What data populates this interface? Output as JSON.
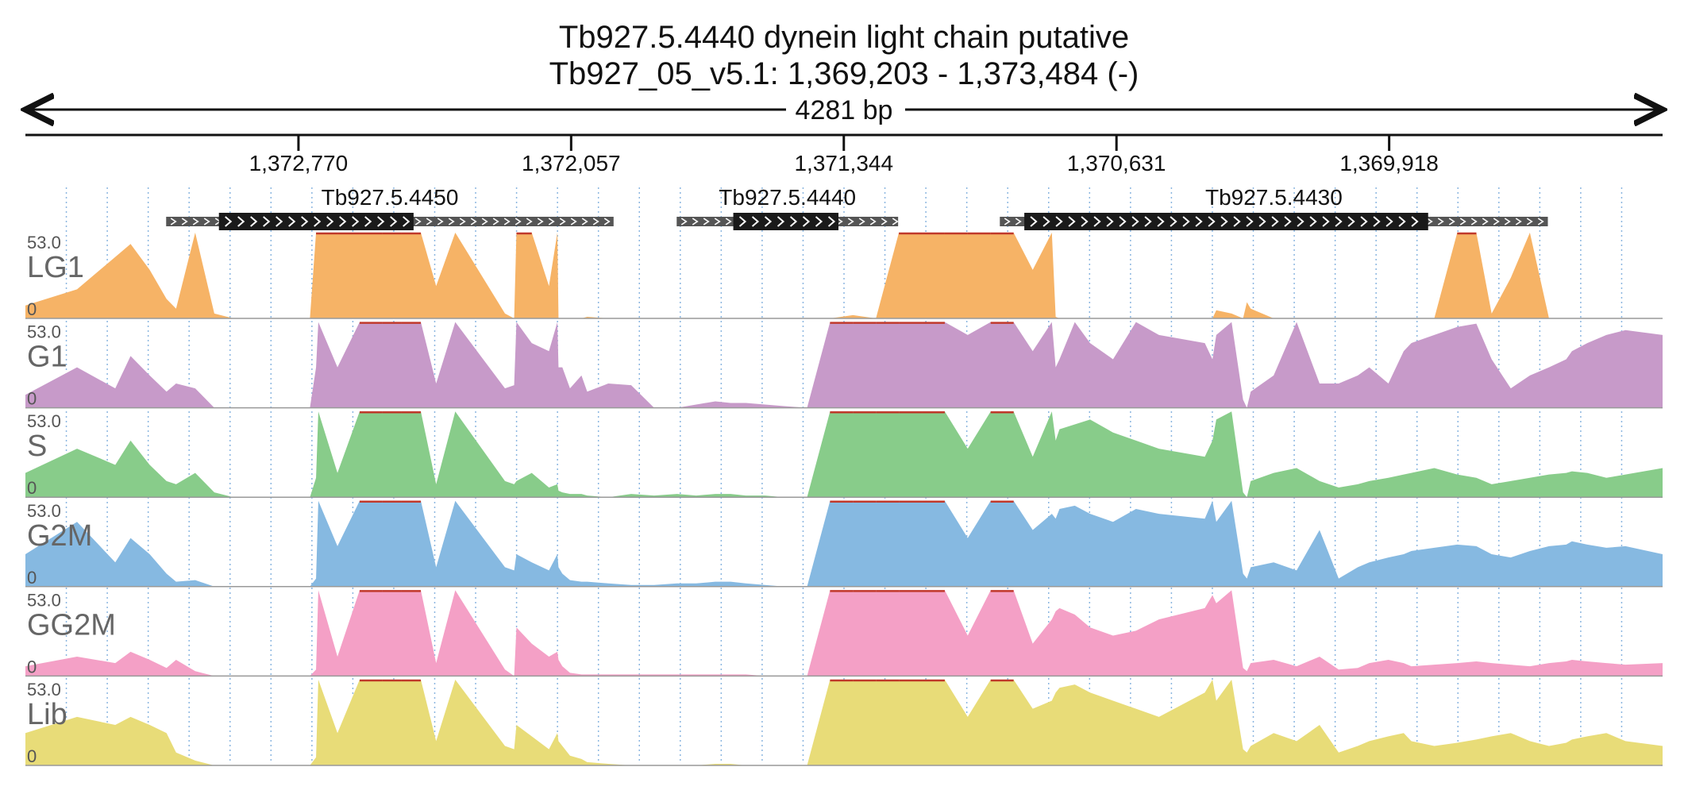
{
  "title": "Tb927.5.4440  dynein light chain  putative",
  "subtitle": "Tb927_05_v5.1: 1,369,203 - 1,373,484 (-)",
  "span_label": "4281 bp",
  "chart_data": {
    "type": "area",
    "coordinate_range": [
      1373484,
      1369203
    ],
    "ticks": [
      1372770,
      1372057,
      1371344,
      1370631,
      1369918
    ],
    "tick_labels": [
      "1,372,770",
      "1,372,057",
      "1,371,344",
      "1,370,631",
      "1,369,918"
    ],
    "grid": true,
    "ylim": [
      0,
      53.0
    ],
    "y_max_label": "53.0",
    "y_min_label": "0",
    "genes": [
      {
        "name": "Tb927.5.4450",
        "start": 1373116,
        "end": 1371946,
        "cds_start": 1372978,
        "cds_end": 1372469
      },
      {
        "name": "Tb927.5.4440",
        "start": 1371781,
        "end": 1371202,
        "cds_start": 1371633,
        "cds_end": 1371358
      },
      {
        "name": "Tb927.5.4430",
        "start": 1370936,
        "end": 1369503,
        "cds_start": 1370872,
        "cds_end": 1369816
      }
    ],
    "series_x": [
      1373484,
      1373349,
      1373249,
      1373209,
      1373159,
      1373115,
      1373090,
      1373040,
      1372990,
      1372940,
      1372890,
      1372790,
      1372740,
      1372724,
      1372718,
      1372668,
      1372610,
      1372550,
      1372500,
      1372450,
      1372410,
      1372360,
      1372230,
      1372206,
      1372200,
      1372160,
      1372115,
      1372093,
      1372090,
      1372080,
      1372060,
      1372030,
      1372015,
      1371960,
      1371900,
      1371840,
      1371780,
      1371730,
      1371680,
      1371640,
      1371600,
      1371550,
      1371500,
      1371440,
      1371380,
      1371320,
      1371260,
      1371200,
      1371140,
      1371080,
      1371020,
      1370960,
      1370900,
      1370850,
      1370800,
      1370790,
      1370780,
      1370740,
      1370700,
      1370640,
      1370580,
      1370520,
      1370400,
      1370380,
      1370370,
      1370330,
      1370300,
      1370290,
      1370280,
      1370220,
      1370160,
      1370100,
      1370050,
      1370000,
      1369970,
      1369920,
      1369880,
      1369860,
      1369800,
      1369740,
      1369690,
      1369650,
      1369600,
      1369550,
      1369500,
      1369455,
      1369440,
      1369400,
      1369350,
      1369300,
      1369203
    ],
    "series": [
      {
        "name": "LG1",
        "color": "#f6b366",
        "values": [
          8,
          18,
          38,
          46,
          30,
          12,
          6,
          53,
          3,
          0,
          0,
          0,
          0,
          53,
          53,
          53,
          53,
          53,
          53,
          53,
          20,
          53,
          3,
          0,
          53,
          53,
          20,
          53,
          0,
          0,
          0,
          0,
          1,
          0,
          0,
          0,
          0,
          0,
          0,
          0,
          0,
          0,
          0,
          0,
          0,
          2,
          0,
          53,
          53,
          53,
          53,
          53,
          53,
          30,
          53,
          1,
          0,
          0,
          0,
          0,
          0,
          0,
          0,
          0,
          5,
          3,
          0,
          10,
          6,
          0,
          0,
          0,
          0,
          0,
          0,
          0,
          0,
          0,
          0,
          53,
          53,
          3,
          25,
          53,
          0,
          0,
          0,
          0,
          0,
          0,
          0
        ]
      },
      {
        "name": "G1",
        "color": "#c79ac9",
        "values": [
          8,
          25,
          12,
          32,
          20,
          10,
          15,
          12,
          0,
          0,
          0,
          0,
          0,
          25,
          53,
          25,
          53,
          53,
          53,
          53,
          15,
          53,
          12,
          14,
          53,
          40,
          35,
          53,
          25,
          25,
          12,
          20,
          10,
          15,
          14,
          0,
          0,
          2,
          4,
          3,
          3,
          2,
          1,
          0,
          53,
          53,
          53,
          53,
          53,
          53,
          45,
          53,
          53,
          35,
          53,
          25,
          30,
          53,
          40,
          30,
          53,
          45,
          40,
          30,
          45,
          53,
          5,
          0,
          10,
          20,
          53,
          15,
          15,
          20,
          25,
          15,
          35,
          40,
          45,
          50,
          52,
          30,
          12,
          20,
          25,
          30,
          35,
          40,
          45,
          48,
          45
        ]
      },
      {
        "name": "S",
        "color": "#88cc8a",
        "values": [
          15,
          30,
          20,
          35,
          20,
          10,
          8,
          15,
          3,
          0,
          0,
          0,
          0,
          12,
          53,
          15,
          53,
          53,
          53,
          53,
          8,
          53,
          10,
          8,
          10,
          15,
          6,
          8,
          4,
          3,
          2,
          2,
          1,
          0,
          2,
          1,
          2,
          1,
          2,
          2,
          1,
          1,
          0,
          0,
          53,
          53,
          53,
          53,
          53,
          53,
          30,
          53,
          53,
          25,
          53,
          35,
          42,
          45,
          48,
          40,
          35,
          30,
          25,
          35,
          48,
          53,
          3,
          0,
          10,
          15,
          18,
          10,
          6,
          8,
          10,
          12,
          14,
          15,
          18,
          14,
          12,
          8,
          10,
          12,
          14,
          15,
          16,
          15,
          12,
          14,
          18
        ]
      },
      {
        "name": "G2M",
        "color": "#86b9e1",
        "values": [
          20,
          40,
          15,
          30,
          20,
          8,
          3,
          4,
          0,
          0,
          0,
          0,
          0,
          5,
          53,
          25,
          53,
          53,
          53,
          53,
          12,
          53,
          12,
          10,
          20,
          15,
          10,
          20,
          12,
          8,
          4,
          3,
          3,
          2,
          1,
          1,
          2,
          2,
          3,
          3,
          2,
          1,
          0,
          0,
          53,
          53,
          53,
          53,
          53,
          53,
          30,
          53,
          53,
          35,
          45,
          42,
          48,
          50,
          45,
          40,
          48,
          45,
          42,
          53,
          40,
          53,
          8,
          5,
          12,
          15,
          10,
          35,
          5,
          12,
          15,
          18,
          20,
          22,
          24,
          26,
          25,
          20,
          18,
          22,
          25,
          26,
          28,
          26,
          24,
          25,
          20
        ]
      },
      {
        "name": "GG2M",
        "color": "#f4a0c6",
        "values": [
          6,
          12,
          8,
          15,
          10,
          5,
          10,
          3,
          0,
          0,
          0,
          0,
          0,
          4,
          53,
          12,
          53,
          53,
          53,
          53,
          8,
          53,
          4,
          0,
          30,
          20,
          12,
          15,
          10,
          6,
          2,
          1,
          1,
          1,
          1,
          1,
          1,
          1,
          1,
          1,
          1,
          0,
          0,
          0,
          53,
          53,
          53,
          53,
          53,
          53,
          25,
          53,
          53,
          20,
          35,
          40,
          42,
          38,
          30,
          25,
          28,
          35,
          42,
          50,
          45,
          53,
          5,
          3,
          8,
          10,
          6,
          12,
          4,
          5,
          8,
          10,
          8,
          6,
          7,
          8,
          9,
          8,
          7,
          6,
          8,
          9,
          10,
          9,
          8,
          7,
          8
        ]
      },
      {
        "name": "Lib",
        "color": "#e8dc78",
        "values": [
          20,
          30,
          25,
          30,
          25,
          20,
          8,
          3,
          0,
          0,
          0,
          0,
          0,
          5,
          53,
          20,
          53,
          53,
          53,
          53,
          15,
          53,
          12,
          10,
          25,
          18,
          10,
          20,
          15,
          12,
          6,
          4,
          2,
          1,
          0,
          0,
          0,
          0,
          1,
          1,
          0,
          0,
          0,
          0,
          53,
          53,
          53,
          53,
          53,
          53,
          30,
          53,
          53,
          35,
          40,
          45,
          48,
          50,
          45,
          40,
          35,
          30,
          45,
          53,
          40,
          53,
          10,
          8,
          12,
          20,
          15,
          25,
          8,
          12,
          15,
          18,
          20,
          15,
          12,
          14,
          16,
          18,
          20,
          15,
          12,
          14,
          16,
          18,
          20,
          15,
          12
        ]
      }
    ]
  }
}
